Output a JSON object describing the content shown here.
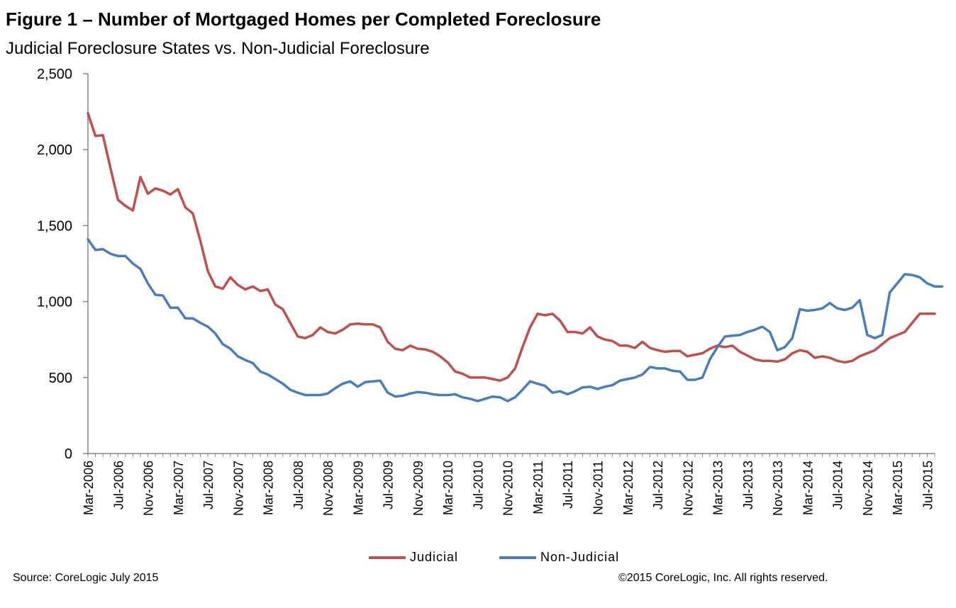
{
  "chart_data": {
    "type": "line",
    "title": "Figure 1 – Number of Mortgaged Homes per Completed Foreclosure",
    "subtitle": "Judicial Foreclosure States vs. Non-Judicial Foreclosure",
    "xlabel": "",
    "ylabel": "",
    "ylim": [
      0,
      2500
    ],
    "y_ticks": [
      "0",
      "500",
      "1,000",
      "1,500",
      "2,000",
      "2,500"
    ],
    "y_tick_values": [
      0,
      500,
      1000,
      1500,
      2000,
      2500
    ],
    "x_start": "Mar-2006",
    "x_end": "Jul-2015",
    "x_tick_labels": [
      "Mar-2006",
      "Jul-2006",
      "Nov-2006",
      "Mar-2007",
      "Jul-2007",
      "Nov-2007",
      "Mar-2008",
      "Jul-2008",
      "Nov-2008",
      "Mar-2009",
      "Jul-2009",
      "Nov-2009",
      "Mar-2010",
      "Jul-2010",
      "Nov-2010",
      "Mar-2011",
      "Jul-2011",
      "Nov-2011",
      "Mar-2012",
      "Jul-2012",
      "Nov-2012",
      "Mar-2013",
      "Jul-2013",
      "Nov-2013",
      "Mar-2014",
      "Jul-2014",
      "Nov-2014",
      "Mar-2015",
      "Jul-2015"
    ],
    "grid": false,
    "legend_position": "bottom",
    "series": [
      {
        "name": "Judicial",
        "color": "#c0504d",
        "values": [
          2240,
          2090,
          2095,
          1880,
          1670,
          1630,
          1600,
          1820,
          1710,
          1745,
          1730,
          1705,
          1740,
          1620,
          1580,
          1400,
          1200,
          1100,
          1085,
          1160,
          1110,
          1080,
          1100,
          1070,
          1080,
          980,
          950,
          860,
          770,
          760,
          780,
          830,
          800,
          790,
          815,
          850,
          855,
          850,
          850,
          830,
          735,
          690,
          680,
          710,
          690,
          685,
          670,
          640,
          600,
          540,
          525,
          500,
          500,
          500,
          490,
          480,
          500,
          560,
          700,
          830,
          920,
          910,
          920,
          875,
          800,
          800,
          790,
          830,
          770,
          750,
          740,
          710,
          710,
          695,
          735,
          695,
          680,
          670,
          675,
          675,
          640,
          650,
          660,
          690,
          710,
          700,
          710,
          670,
          645,
          620,
          610,
          610,
          605,
          620,
          660,
          680,
          670,
          630,
          640,
          630,
          610,
          600,
          610,
          640,
          660,
          680,
          720,
          760,
          780,
          800,
          860,
          920,
          920,
          920
        ]
      },
      {
        "name": "Non-Judicial",
        "color": "#4a7ebb",
        "values": [
          1410,
          1340,
          1345,
          1315,
          1300,
          1300,
          1250,
          1215,
          1120,
          1045,
          1040,
          960,
          960,
          890,
          890,
          860,
          835,
          790,
          720,
          690,
          640,
          615,
          595,
          540,
          520,
          490,
          460,
          420,
          400,
          385,
          385,
          385,
          395,
          430,
          460,
          475,
          440,
          470,
          475,
          480,
          400,
          375,
          380,
          395,
          405,
          400,
          390,
          385,
          385,
          390,
          370,
          360,
          345,
          360,
          375,
          370,
          345,
          370,
          420,
          475,
          460,
          445,
          400,
          410,
          390,
          410,
          435,
          440,
          425,
          440,
          450,
          480,
          490,
          500,
          520,
          570,
          560,
          560,
          545,
          540,
          485,
          485,
          500,
          620,
          700,
          770,
          775,
          780,
          800,
          815,
          835,
          800,
          680,
          700,
          760,
          950,
          940,
          945,
          955,
          990,
          955,
          945,
          960,
          1010,
          780,
          760,
          780,
          1060,
          1120,
          1180,
          1175,
          1160,
          1120,
          1100,
          1100
        ]
      }
    ],
    "legend": {
      "judicial_label": "Judicial",
      "nonjudicial_label": "Non-Judicial",
      "judicial_color": "#c0504d",
      "nonjudicial_color": "#4a7ebb"
    },
    "source": "Source: CoreLogic  July 2015",
    "copyright": "©2015 CoreLogic, Inc.  All rights reserved."
  }
}
